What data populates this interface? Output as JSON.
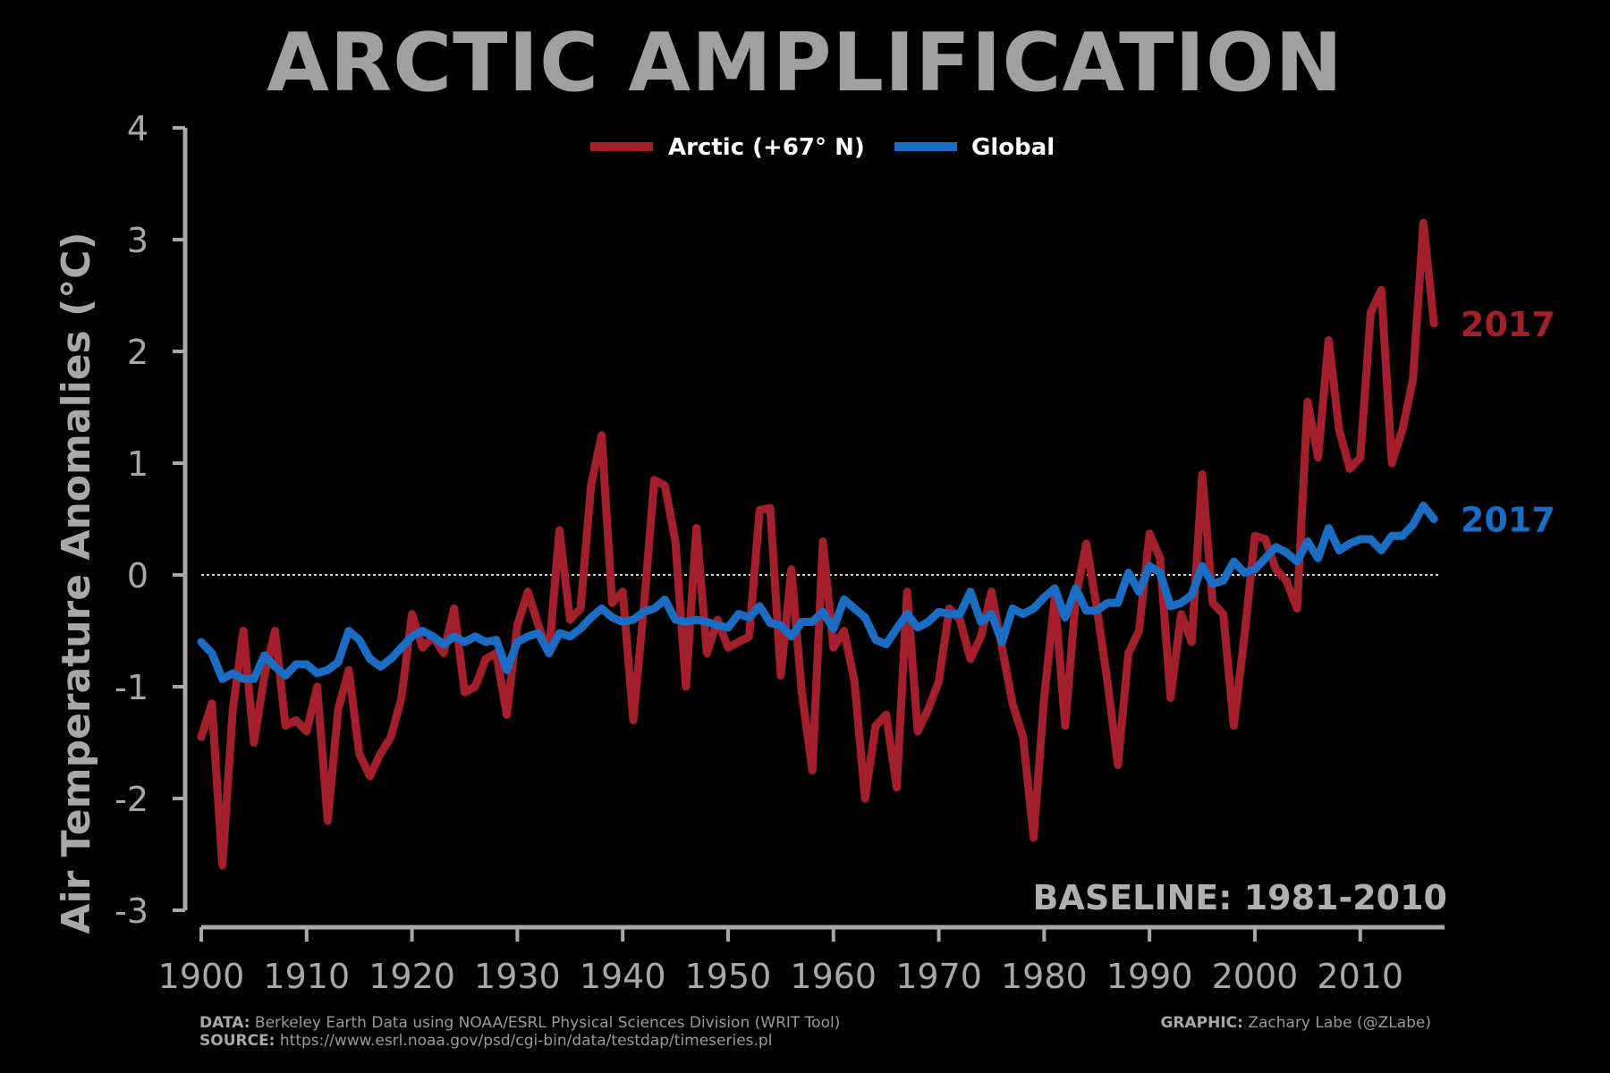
{
  "title": "ARCTIC AMPLIFICATION",
  "baseline_text": "BASELINE: 1981-2010",
  "footer": {
    "data_label": "DATA:",
    "data_text": "Berkeley Earth Data using NOAA/ESRL Physical Sciences Division (WRIT Tool)",
    "source_label": "SOURCE:",
    "source_text": "https://www.esrl.noaa.gov/psd/cgi-bin/data/testdap/timeseries.pl",
    "graphic_label": "GRAPHIC:",
    "graphic_text": "Zachary Labe (@ZLabe)"
  },
  "chart_data": {
    "type": "line",
    "title": "ARCTIC AMPLIFICATION",
    "xlabel": "",
    "ylabel": "Air Temperature Anomalies (°C)",
    "xlim": [
      1900,
      2018
    ],
    "ylim": [
      -3,
      4
    ],
    "x_ticks": [
      1900,
      1910,
      1920,
      1930,
      1940,
      1950,
      1960,
      1970,
      1980,
      1990,
      2000,
      2010
    ],
    "y_ticks": [
      -3,
      -2,
      -1,
      0,
      1,
      2,
      3,
      4
    ],
    "y_tick_labels": [
      "-3",
      "-2",
      "-1",
      "0",
      "1",
      "2",
      "3",
      "4"
    ],
    "grid": false,
    "zero_line": true,
    "legend_position": "top-center",
    "x_start": 1900,
    "series": [
      {
        "name": "Arctic (+67° N)",
        "color": "#a31f2b",
        "end_label": "2017",
        "values": [
          -1.45,
          -1.15,
          -2.6,
          -1.2,
          -0.5,
          -1.5,
          -0.9,
          -0.5,
          -1.35,
          -1.3,
          -1.4,
          -1.0,
          -2.2,
          -1.2,
          -0.85,
          -1.6,
          -1.8,
          -1.6,
          -1.45,
          -1.1,
          -0.35,
          -0.65,
          -0.55,
          -0.7,
          -0.3,
          -1.05,
          -1.0,
          -0.75,
          -0.7,
          -1.25,
          -0.45,
          -0.15,
          -0.45,
          -0.7,
          0.4,
          -0.4,
          -0.3,
          0.8,
          1.25,
          -0.25,
          -0.15,
          -1.3,
          -0.3,
          0.85,
          0.8,
          0.3,
          -1.0,
          0.42,
          -0.7,
          -0.4,
          -0.65,
          -0.6,
          -0.55,
          0.58,
          0.6,
          -0.9,
          0.05,
          -1.05,
          -1.75,
          0.3,
          -0.65,
          -0.5,
          -0.95,
          -2.0,
          -1.35,
          -1.25,
          -1.9,
          -0.15,
          -1.4,
          -1.2,
          -0.95,
          -0.3,
          -0.4,
          -0.75,
          -0.55,
          -0.15,
          -0.65,
          -1.15,
          -1.45,
          -2.35,
          -1.1,
          -0.2,
          -1.35,
          -0.2,
          0.28,
          -0.3,
          -0.95,
          -1.7,
          -0.7,
          -0.5,
          0.37,
          0.15,
          -1.1,
          -0.35,
          -0.6,
          0.9,
          -0.25,
          -0.35,
          -1.35,
          -0.55,
          0.35,
          0.32,
          0.05,
          -0.05,
          -0.3,
          1.55,
          1.05,
          2.1,
          1.3,
          0.95,
          1.05,
          2.35,
          2.55,
          1.0,
          1.3,
          1.75,
          3.15,
          2.25
        ]
      },
      {
        "name": "Global",
        "color": "#1a6dc2",
        "end_label": "2017",
        "values": [
          -0.6,
          -0.7,
          -0.93,
          -0.88,
          -0.93,
          -0.93,
          -0.72,
          -0.82,
          -0.9,
          -0.8,
          -0.8,
          -0.88,
          -0.85,
          -0.78,
          -0.5,
          -0.58,
          -0.75,
          -0.82,
          -0.75,
          -0.65,
          -0.55,
          -0.5,
          -0.55,
          -0.62,
          -0.55,
          -0.6,
          -0.55,
          -0.6,
          -0.58,
          -0.85,
          -0.6,
          -0.55,
          -0.52,
          -0.7,
          -0.52,
          -0.55,
          -0.48,
          -0.38,
          -0.3,
          -0.38,
          -0.42,
          -0.4,
          -0.33,
          -0.3,
          -0.22,
          -0.4,
          -0.42,
          -0.4,
          -0.42,
          -0.45,
          -0.47,
          -0.35,
          -0.38,
          -0.28,
          -0.43,
          -0.45,
          -0.55,
          -0.42,
          -0.42,
          -0.33,
          -0.48,
          -0.22,
          -0.3,
          -0.38,
          -0.58,
          -0.62,
          -0.48,
          -0.35,
          -0.47,
          -0.42,
          -0.33,
          -0.35,
          -0.35,
          -0.15,
          -0.42,
          -0.35,
          -0.6,
          -0.3,
          -0.35,
          -0.3,
          -0.2,
          -0.12,
          -0.38,
          -0.12,
          -0.32,
          -0.32,
          -0.25,
          -0.25,
          0.02,
          -0.15,
          0.08,
          0.02,
          -0.28,
          -0.25,
          -0.18,
          0.08,
          -0.08,
          -0.05,
          0.12,
          0.02,
          0.05,
          0.15,
          0.25,
          0.2,
          0.12,
          0.3,
          0.15,
          0.42,
          0.22,
          0.28,
          0.32,
          0.32,
          0.22,
          0.35,
          0.35,
          0.45,
          0.62,
          0.5
        ]
      }
    ]
  }
}
